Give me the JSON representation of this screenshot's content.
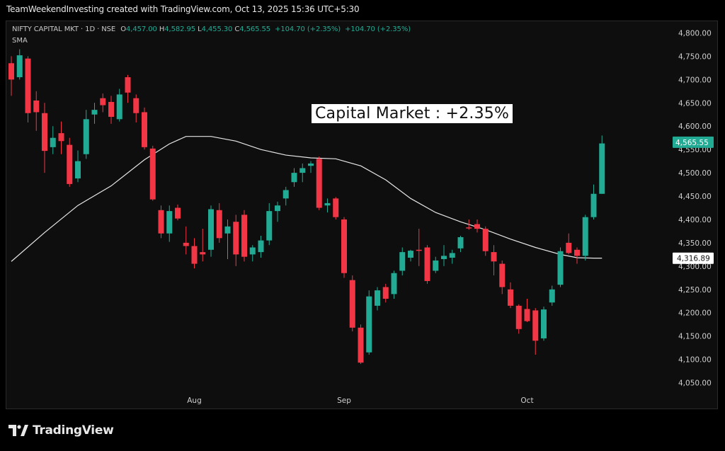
{
  "header": {
    "attribution": "TeamWeekendInvesting created with TradingView.com, Oct 13, 2025 15:36 UTC+5:30"
  },
  "legend": {
    "symbol": "NIFTY CAPITAL MKT · 1D · NSE",
    "o_label": "O",
    "o_value": "4,457.00",
    "h_label": "H",
    "h_value": "4,582.95",
    "l_label": "L",
    "l_value": "4,455.30",
    "c_label": "C",
    "c_value": "4,565.55",
    "change1": "+104.70 (+2.35%)",
    "change2": "+104.70 (+2.35%)",
    "indicator": "SMA"
  },
  "annotation": "Capital Market : +2.35%",
  "footer": {
    "logo_text": "TradingView"
  },
  "colors": {
    "up": "#22ab94",
    "down": "#f23645",
    "sma": "#e6e6e6",
    "background": "#0e0e0e"
  },
  "chart_data": {
    "type": "candlestick",
    "title": "NIFTY CAPITAL MKT · 1D · NSE",
    "xlabel": "",
    "ylabel": "",
    "ylim": [
      4025,
      4825
    ],
    "y_ticks": [
      "4,050.00",
      "4,100.00",
      "4,150.00",
      "4,200.00",
      "4,250.00",
      "4,300.00",
      "4,350.00",
      "4,400.00",
      "4,450.00",
      "4,500.00",
      "4,550.00",
      "4,600.00",
      "4,650.00",
      "4,700.00",
      "4,750.00",
      "4,800.00"
    ],
    "y_tick_values": [
      4050,
      4100,
      4150,
      4200,
      4250,
      4300,
      4350,
      4400,
      4450,
      4500,
      4550,
      4600,
      4650,
      4700,
      4750,
      4800
    ],
    "x_labels": [
      {
        "label": "Aug",
        "index": 22
      },
      {
        "label": "Sep",
        "index": 40
      },
      {
        "label": "Oct",
        "index": 62
      }
    ],
    "last_price_label": "4,565.55",
    "last_price": 4565.55,
    "sma_label": "4,316.89",
    "sma_last": 4316.89,
    "candles": [
      {
        "o": 4735,
        "h": 4750,
        "l": 4665,
        "c": 4700
      },
      {
        "o": 4705,
        "h": 4765,
        "l": 4700,
        "c": 4752
      },
      {
        "o": 4745,
        "h": 4750,
        "l": 4608,
        "c": 4628
      },
      {
        "o": 4655,
        "h": 4675,
        "l": 4590,
        "c": 4630
      },
      {
        "o": 4628,
        "h": 4650,
        "l": 4500,
        "c": 4547
      },
      {
        "o": 4555,
        "h": 4600,
        "l": 4540,
        "c": 4575
      },
      {
        "o": 4585,
        "h": 4610,
        "l": 4540,
        "c": 4568
      },
      {
        "o": 4560,
        "h": 4575,
        "l": 4470,
        "c": 4476
      },
      {
        "o": 4488,
        "h": 4548,
        "l": 4480,
        "c": 4525
      },
      {
        "o": 4540,
        "h": 4635,
        "l": 4530,
        "c": 4615
      },
      {
        "o": 4625,
        "h": 4650,
        "l": 4605,
        "c": 4635
      },
      {
        "o": 4660,
        "h": 4670,
        "l": 4630,
        "c": 4645
      },
      {
        "o": 4652,
        "h": 4665,
        "l": 4605,
        "c": 4620
      },
      {
        "o": 4615,
        "h": 4680,
        "l": 4610,
        "c": 4668
      },
      {
        "o": 4705,
        "h": 4710,
        "l": 4650,
        "c": 4672
      },
      {
        "o": 4660,
        "h": 4668,
        "l": 4608,
        "c": 4628
      },
      {
        "o": 4630,
        "h": 4640,
        "l": 4550,
        "c": 4555
      },
      {
        "o": 4552,
        "h": 4558,
        "l": 4440,
        "c": 4443
      },
      {
        "o": 4420,
        "h": 4430,
        "l": 4360,
        "c": 4370
      },
      {
        "o": 4370,
        "h": 4430,
        "l": 4352,
        "c": 4418
      },
      {
        "o": 4425,
        "h": 4432,
        "l": 4398,
        "c": 4402
      },
      {
        "o": 4350,
        "h": 4385,
        "l": 4325,
        "c": 4343
      },
      {
        "o": 4343,
        "h": 4360,
        "l": 4295,
        "c": 4305
      },
      {
        "o": 4330,
        "h": 4380,
        "l": 4310,
        "c": 4325
      },
      {
        "o": 4335,
        "h": 4430,
        "l": 4320,
        "c": 4422
      },
      {
        "o": 4420,
        "h": 4435,
        "l": 4350,
        "c": 4360
      },
      {
        "o": 4370,
        "h": 4400,
        "l": 4315,
        "c": 4385
      },
      {
        "o": 4395,
        "h": 4410,
        "l": 4300,
        "c": 4325
      },
      {
        "o": 4410,
        "h": 4420,
        "l": 4310,
        "c": 4320
      },
      {
        "o": 4325,
        "h": 4345,
        "l": 4310,
        "c": 4340
      },
      {
        "o": 4330,
        "h": 4365,
        "l": 4318,
        "c": 4355
      },
      {
        "o": 4355,
        "h": 4435,
        "l": 4345,
        "c": 4418
      },
      {
        "o": 4418,
        "h": 4438,
        "l": 4395,
        "c": 4430
      },
      {
        "o": 4445,
        "h": 4470,
        "l": 4430,
        "c": 4463
      },
      {
        "o": 4480,
        "h": 4510,
        "l": 4470,
        "c": 4500
      },
      {
        "o": 4500,
        "h": 4520,
        "l": 4480,
        "c": 4510
      },
      {
        "o": 4515,
        "h": 4525,
        "l": 4500,
        "c": 4520
      },
      {
        "o": 4530,
        "h": 4535,
        "l": 4420,
        "c": 4425
      },
      {
        "o": 4430,
        "h": 4445,
        "l": 4415,
        "c": 4435
      },
      {
        "o": 4445,
        "h": 4448,
        "l": 4400,
        "c": 4405
      },
      {
        "o": 4400,
        "h": 4405,
        "l": 4275,
        "c": 4285
      },
      {
        "o": 4270,
        "h": 4280,
        "l": 4160,
        "c": 4168
      },
      {
        "o": 4168,
        "h": 4175,
        "l": 4090,
        "c": 4093
      },
      {
        "o": 4115,
        "h": 4248,
        "l": 4110,
        "c": 4235
      },
      {
        "o": 4215,
        "h": 4255,
        "l": 4205,
        "c": 4248
      },
      {
        "o": 4255,
        "h": 4262,
        "l": 4222,
        "c": 4230
      },
      {
        "o": 4240,
        "h": 4290,
        "l": 4230,
        "c": 4285
      },
      {
        "o": 4290,
        "h": 4340,
        "l": 4280,
        "c": 4330
      },
      {
        "o": 4318,
        "h": 4335,
        "l": 4310,
        "c": 4333
      },
      {
        "o": 4335,
        "h": 4380,
        "l": 4300,
        "c": 4334
      },
      {
        "o": 4340,
        "h": 4345,
        "l": 4262,
        "c": 4268
      },
      {
        "o": 4290,
        "h": 4320,
        "l": 4285,
        "c": 4312
      },
      {
        "o": 4315,
        "h": 4345,
        "l": 4300,
        "c": 4322
      },
      {
        "o": 4318,
        "h": 4335,
        "l": 4305,
        "c": 4328
      },
      {
        "o": 4338,
        "h": 4365,
        "l": 4330,
        "c": 4362
      },
      {
        "o": 4383,
        "h": 4400,
        "l": 4378,
        "c": 4382
      },
      {
        "o": 4390,
        "h": 4400,
        "l": 4372,
        "c": 4380
      },
      {
        "o": 4380,
        "h": 4385,
        "l": 4322,
        "c": 4332
      },
      {
        "o": 4330,
        "h": 4345,
        "l": 4280,
        "c": 4310
      },
      {
        "o": 4305,
        "h": 4312,
        "l": 4240,
        "c": 4255
      },
      {
        "o": 4250,
        "h": 4265,
        "l": 4210,
        "c": 4215
      },
      {
        "o": 4215,
        "h": 4218,
        "l": 4155,
        "c": 4165
      },
      {
        "o": 4208,
        "h": 4230,
        "l": 4180,
        "c": 4182
      },
      {
        "o": 4205,
        "h": 4210,
        "l": 4110,
        "c": 4140
      },
      {
        "o": 4145,
        "h": 4213,
        "l": 4140,
        "c": 4207
      },
      {
        "o": 4222,
        "h": 4258,
        "l": 4215,
        "c": 4250
      },
      {
        "o": 4260,
        "h": 4340,
        "l": 4255,
        "c": 4332
      },
      {
        "o": 4350,
        "h": 4370,
        "l": 4325,
        "c": 4328
      },
      {
        "o": 4335,
        "h": 4340,
        "l": 4305,
        "c": 4322
      },
      {
        "o": 4322,
        "h": 4410,
        "l": 4312,
        "c": 4405
      },
      {
        "o": 4405,
        "h": 4475,
        "l": 4400,
        "c": 4455
      },
      {
        "o": 4455,
        "h": 4580,
        "l": 4455,
        "c": 4563
      }
    ],
    "sma": [
      {
        "index": 0,
        "value": 4310
      },
      {
        "index": 4,
        "value": 4372
      },
      {
        "index": 8,
        "value": 4430
      },
      {
        "index": 12,
        "value": 4472
      },
      {
        "index": 16,
        "value": 4528
      },
      {
        "index": 19,
        "value": 4562
      },
      {
        "index": 21,
        "value": 4578
      },
      {
        "index": 24,
        "value": 4578
      },
      {
        "index": 27,
        "value": 4568
      },
      {
        "index": 30,
        "value": 4550
      },
      {
        "index": 33,
        "value": 4538
      },
      {
        "index": 36,
        "value": 4532
      },
      {
        "index": 39,
        "value": 4530
      },
      {
        "index": 42,
        "value": 4515
      },
      {
        "index": 45,
        "value": 4485
      },
      {
        "index": 48,
        "value": 4445
      },
      {
        "index": 51,
        "value": 4415
      },
      {
        "index": 54,
        "value": 4395
      },
      {
        "index": 57,
        "value": 4378
      },
      {
        "index": 60,
        "value": 4358
      },
      {
        "index": 63,
        "value": 4340
      },
      {
        "index": 66,
        "value": 4325
      },
      {
        "index": 68,
        "value": 4318
      },
      {
        "index": 70,
        "value": 4317
      },
      {
        "index": 71,
        "value": 4317
      }
    ]
  }
}
